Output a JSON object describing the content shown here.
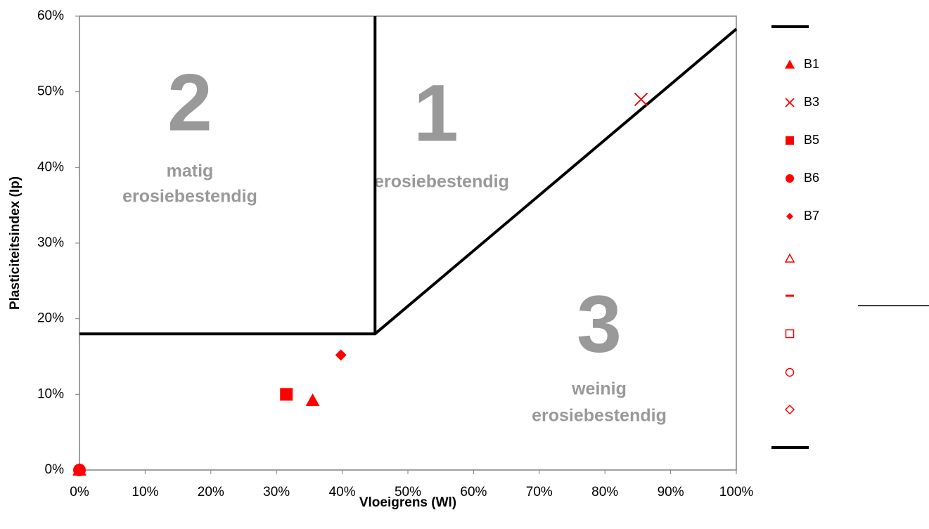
{
  "chart_data": {
    "type": "scatter",
    "x_label": "Vloeigrens (Wl)",
    "y_label": "Plasticiteitsindex (Ip)",
    "xlim": [
      0,
      100
    ],
    "ylim": [
      0,
      60
    ],
    "xticks": [
      {
        "value": 0,
        "label": "0%"
      },
      {
        "value": 10,
        "label": "10%"
      },
      {
        "value": 20,
        "label": "20%"
      },
      {
        "value": 30,
        "label": "30%"
      },
      {
        "value": 40,
        "label": "40%"
      },
      {
        "value": 50,
        "label": "50%"
      },
      {
        "value": 60,
        "label": "60%"
      },
      {
        "value": 70,
        "label": "70%"
      },
      {
        "value": 80,
        "label": "80%"
      },
      {
        "value": 90,
        "label": "90%"
      },
      {
        "value": 100,
        "label": "100%"
      }
    ],
    "yticks": [
      {
        "value": 0,
        "label": "0%"
      },
      {
        "value": 10,
        "label": "10%"
      },
      {
        "value": 20,
        "label": "20%"
      },
      {
        "value": 30,
        "label": "30%"
      },
      {
        "value": 40,
        "label": "40%"
      },
      {
        "value": 50,
        "label": "50%"
      },
      {
        "value": 60,
        "label": "60%"
      }
    ],
    "boundaries": [
      {
        "color": "#000000",
        "x": [
          0,
          45,
          100
        ],
        "y": [
          18,
          18,
          58.3
        ]
      },
      {
        "color": "#000000",
        "x": [
          45,
          45
        ],
        "y": [
          18,
          60
        ]
      }
    ],
    "series": [
      {
        "name": "B1",
        "color": "#ff0000",
        "marker": "triangle",
        "x": [
          35.5,
          0
        ],
        "y": [
          9.2,
          0
        ]
      },
      {
        "name": "B3",
        "color": "#ff0000",
        "marker": "cross",
        "x": [
          85.5
        ],
        "y": [
          49
        ]
      },
      {
        "name": "B5",
        "color": "#ff0000",
        "marker": "square",
        "x": [
          31.5
        ],
        "y": [
          10
        ]
      },
      {
        "name": "B6",
        "color": "#ff0000",
        "marker": "circle",
        "x": [
          0
        ],
        "y": [
          0
        ]
      },
      {
        "name": "B7",
        "color": "#ff0000",
        "marker": "diamond",
        "x": [
          39.8
        ],
        "y": [
          15.2
        ]
      }
    ],
    "annotations": [
      {
        "lines": [
          "2"
        ],
        "style": "big"
      },
      {
        "lines": [
          "matig",
          "erosiebestendig"
        ],
        "style": "zone"
      },
      {
        "lines": [
          "1"
        ],
        "style": "big"
      },
      {
        "lines": [
          "erosiebestendig"
        ],
        "style": "zone"
      },
      {
        "lines": [
          "3"
        ],
        "style": "big"
      },
      {
        "lines": [
          "weinig",
          "erosiebestendig"
        ],
        "style": "zone"
      }
    ]
  }
}
